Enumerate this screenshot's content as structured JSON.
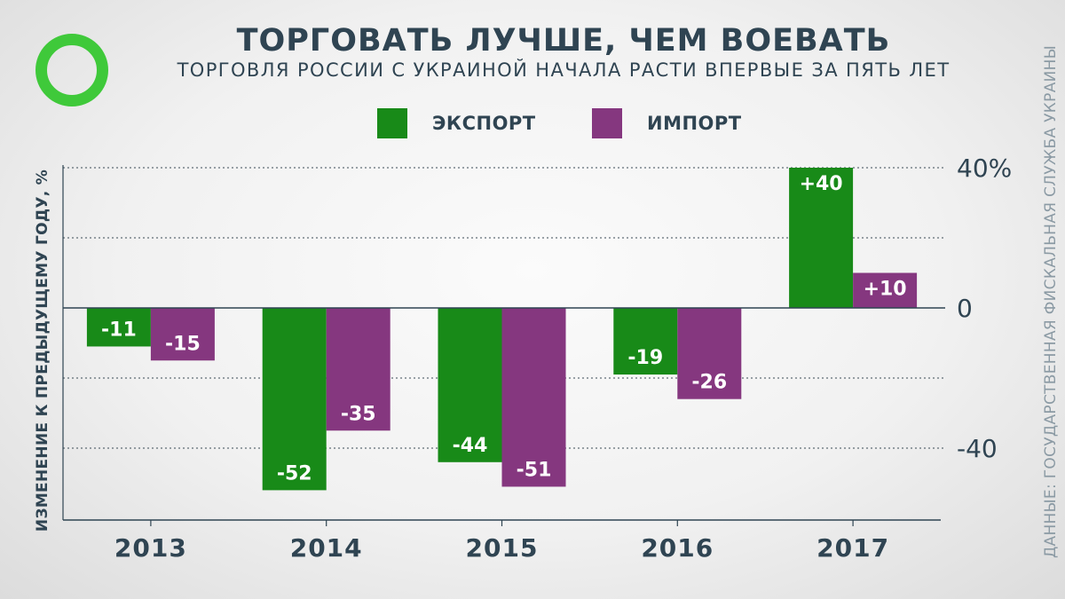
{
  "header": {
    "title": "ТОРГОВАТЬ ЛУЧШЕ, ЧЕМ ВОЕВАТЬ",
    "subtitle": "ТОРГОВЛЯ РОССИИ С УКРАИНОЙ НАЧАЛА РАСТИ ВПЕРВЫЕ ЗА ПЯТЬ ЛЕТ"
  },
  "source": "ДАННЫЕ: ГОСУДАРСТВЕННАЯ ФИСКАЛЬНАЯ СЛУЖБА УКРАИНЫ",
  "colors": {
    "export": "#188a18",
    "import": "#85377f",
    "logo": "#3fc93a"
  },
  "chart_data": {
    "type": "bar",
    "title": "ТОРГОВАТЬ ЛУЧШЕ, ЧЕМ ВОЕВАТЬ",
    "subtitle": "ТОРГОВЛЯ РОССИИ С УКРАИНОЙ НАЧАЛА РАСТИ ВПЕРВЫЕ ЗА ПЯТЬ ЛЕТ",
    "ylabel": "ИЗМЕНЕНИЕ К ПРЕДЫДУЩЕМУ ГОДУ, %",
    "xlabel": "",
    "categories": [
      "2013",
      "2014",
      "2015",
      "2016",
      "2017"
    ],
    "series": [
      {
        "name": "ЭКСПОРТ",
        "values": [
          -11,
          -52,
          -44,
          -19,
          40
        ],
        "labels": [
          "-11",
          "-52",
          "-44",
          "-19",
          "+40"
        ]
      },
      {
        "name": "ИМПОРТ",
        "values": [
          -15,
          -35,
          -51,
          -26,
          10
        ],
        "labels": [
          "-15",
          "-35",
          "-51",
          "-26",
          "+10"
        ]
      }
    ],
    "ylim": [
      -60,
      40
    ],
    "yticks": [
      40,
      0,
      -40
    ],
    "ytick_labels": [
      "40%",
      "0",
      "-40"
    ],
    "grid": true,
    "legend": "top-center"
  }
}
